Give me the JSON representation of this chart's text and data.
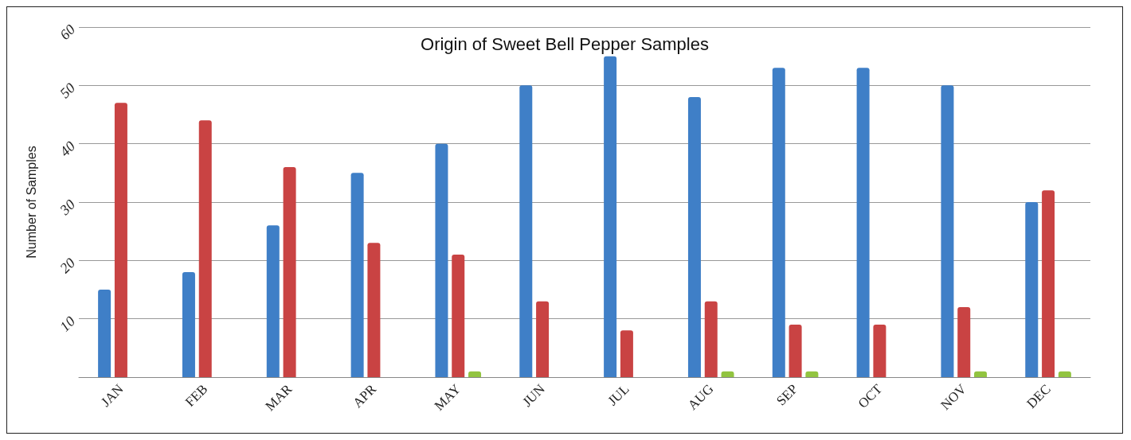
{
  "chart_data": {
    "type": "bar",
    "title": "Origin of Sweet Bell Pepper Samples",
    "ylabel": "Number of Samples",
    "categories": [
      "JAN",
      "FEB",
      "MAR",
      "APR",
      "MAY",
      "JUN",
      "JUL",
      "AUG",
      "SEP",
      "OCT",
      "NOV",
      "DEC"
    ],
    "series": [
      {
        "color": "#3f7fc7",
        "values": [
          15,
          18,
          26,
          35,
          40,
          50,
          55,
          48,
          53,
          53,
          50,
          30
        ]
      },
      {
        "color": "#c94343",
        "values": [
          47,
          44,
          36,
          23,
          21,
          13,
          8,
          13,
          9,
          9,
          12,
          32
        ]
      },
      {
        "color": "#92c440",
        "values": [
          0,
          0,
          0,
          0,
          1,
          0,
          0,
          1,
          1,
          0,
          1,
          1
        ]
      }
    ],
    "ylim": [
      0,
      60
    ],
    "yticks": [
      {
        "value": 0,
        "label": null
      },
      10,
      20,
      30,
      40,
      50,
      60
    ],
    "grid": "y"
  }
}
